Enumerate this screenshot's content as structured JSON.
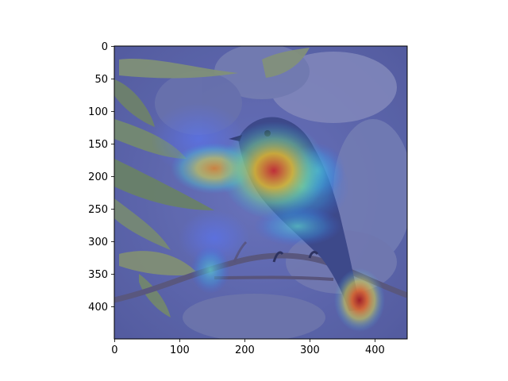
{
  "figure": {
    "image_description_semantic": "bird-on-branch-with-attention-heatmap-overlay",
    "x_ticks": [
      "0",
      "100",
      "200",
      "300",
      "400"
    ],
    "y_ticks": [
      "0",
      "50",
      "100",
      "150",
      "200",
      "250",
      "300",
      "350",
      "400"
    ],
    "x_range": [
      0,
      449
    ],
    "y_range": [
      0,
      449
    ],
    "y_inverted": true,
    "colormap": "jet",
    "colors": {
      "background": "#ffffff",
      "axis": "#000000",
      "overlay_base": "#5b5fc7"
    }
  }
}
